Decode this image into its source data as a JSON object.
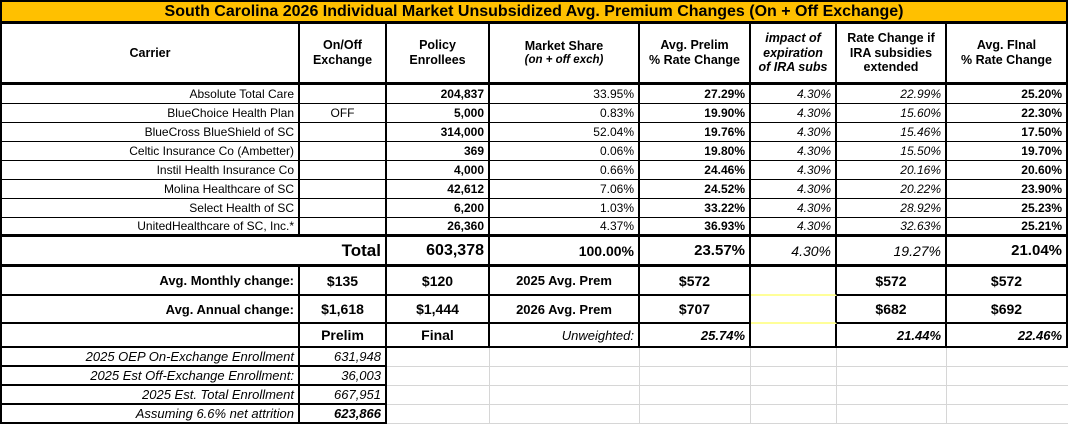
{
  "title": "South Carolina 2026 Individual Market Unsubsidized Avg. Premium Changes (On + Off Exchange)",
  "colors": {
    "title_bg": "#FFC000",
    "prelim_yellow": "#FFFF99",
    "final_green": "#CCFFCC",
    "highlight_cyan": "#00FFFF",
    "unweighted_gray": "#C0C0C0",
    "border": "#000000"
  },
  "header": {
    "carrier": "Carrier",
    "onoff_l1": "On/Off",
    "onoff_l2": "Exchange",
    "enrollees_l1": "Policy",
    "enrollees_l2": "Enrollees",
    "share_l1": "Market Share",
    "share_l2": "(on + off exch)",
    "prelim_l1": "Avg. Prelim",
    "prelim_l2": "% Rate Change",
    "impact_l1": "impact of",
    "impact_l2": "expiration",
    "impact_l3": "of IRA subs",
    "extended_l1": "Rate Change if",
    "extended_l2": "IRA subsidies",
    "extended_l3": "extended",
    "final_l1": "Avg. FInal",
    "final_l2": "% Rate Change"
  },
  "rows": [
    {
      "carrier": "Absolute Total Care",
      "onoff": "",
      "enrollees": "204,837",
      "share": "33.95%",
      "prelim": "27.29%",
      "impact": "4.30%",
      "extended": "22.99%",
      "final": "25.20%"
    },
    {
      "carrier": "BlueChoice Health Plan",
      "onoff": "OFF",
      "enrollees": "5,000",
      "share": "0.83%",
      "prelim": "19.90%",
      "impact": "4.30%",
      "extended": "15.60%",
      "final": "22.30%"
    },
    {
      "carrier": "BlueCross BlueShield of SC",
      "onoff": "",
      "enrollees": "314,000",
      "share": "52.04%",
      "prelim": "19.76%",
      "impact": "4.30%",
      "extended": "15.46%",
      "final": "17.50%"
    },
    {
      "carrier": "Celtic Insurance Co (Ambetter)",
      "onoff": "",
      "enrollees": "369",
      "share": "0.06%",
      "prelim": "19.80%",
      "impact": "4.30%",
      "extended": "15.50%",
      "final": "19.70%"
    },
    {
      "carrier": "Instil Health Insurance Co",
      "onoff": "",
      "enrollees": "4,000",
      "share": "0.66%",
      "prelim": "24.46%",
      "impact": "4.30%",
      "extended": "20.16%",
      "final": "20.60%"
    },
    {
      "carrier": "Molina Healthcare of SC",
      "onoff": "",
      "enrollees": "42,612",
      "share": "7.06%",
      "prelim": "24.52%",
      "impact": "4.30%",
      "extended": "20.22%",
      "final": "23.90%"
    },
    {
      "carrier": "Select Health of SC",
      "onoff": "",
      "enrollees": "6,200",
      "share": "1.03%",
      "prelim": "33.22%",
      "impact": "4.30%",
      "extended": "28.92%",
      "final": "25.23%"
    },
    {
      "carrier": "UnitedHealthcare of SC, Inc.*",
      "onoff": "",
      "enrollees": "26,360",
      "share": "4.37%",
      "prelim": "36.93%",
      "impact": "4.30%",
      "extended": "32.63%",
      "final": "25.21%"
    }
  ],
  "total": {
    "label": "Total",
    "enrollees": "603,378",
    "share": "100.00%",
    "prelim": "23.57%",
    "impact": "4.30%",
    "extended": "19.27%",
    "final": "21.04%"
  },
  "monthly": {
    "label": "Avg. Monthly change:",
    "prelim_amt": "$135",
    "final_amt": "$120",
    "prem_label": "2025 Avg. Prem",
    "col_prelim": "$572",
    "col_extended": "$572",
    "col_final": "$572"
  },
  "annual": {
    "label": "Avg. Annual change:",
    "prelim_amt": "$1,618",
    "final_amt": "$1,444",
    "prem_label": "2026 Avg. Prem",
    "col_prelim": "$707",
    "col_extended": "$682",
    "col_final": "$692"
  },
  "legend": {
    "prelim": "Prelim",
    "final": "Final",
    "unweighted_label": "Unweighted:",
    "unweighted_prelim": "25.74%",
    "unweighted_extended": "21.44%",
    "unweighted_final": "22.46%"
  },
  "footnotes": [
    {
      "label": "2025 OEP On-Exchange Enrollment",
      "value": "631,948"
    },
    {
      "label": "2025 Est Off-Exchange Enrollment:",
      "value": "36,003"
    },
    {
      "label": "2025 Est. Total Enrollment",
      "value": "667,951"
    },
    {
      "label": "Assuming 6.6% net attrition",
      "value": "623,866"
    }
  ]
}
